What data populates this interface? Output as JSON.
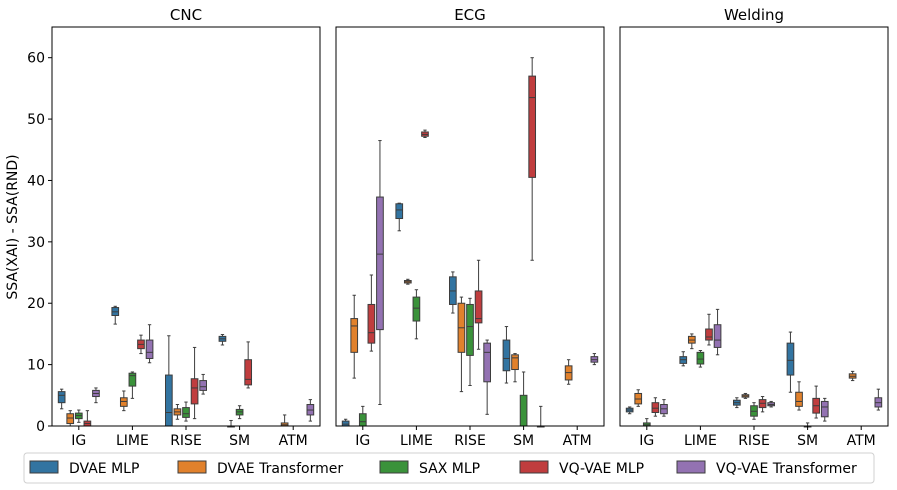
{
  "chart_data": {
    "type": "box",
    "ylabel": "SSA(XAI) - SSA(RND)",
    "ylim": [
      0,
      65
    ],
    "yticks": [
      0,
      10,
      20,
      30,
      40,
      50,
      60
    ],
    "categories": [
      "IG",
      "LIME",
      "RISE",
      "SM",
      "ATM"
    ],
    "series_names": [
      "DVAE MLP",
      "DVAE Transformer",
      "SAX MLP",
      "VQ-VAE MLP",
      "VQ-VAE Transformer"
    ],
    "colors": [
      "#3274a1",
      "#e1812c",
      "#3a923a",
      "#c03d3e",
      "#9372b2"
    ],
    "panels": [
      {
        "title": "CNC",
        "boxes": [
          [
            [
              2.8,
              3.8,
              5.0,
              5.6,
              6.0
            ],
            [
              0.0,
              0.4,
              1.3,
              2.0,
              2.5
            ],
            [
              0.6,
              1.2,
              1.7,
              2.1,
              2.6
            ],
            [
              0.0,
              0.0,
              0.4,
              0.8,
              2.5
            ],
            [
              3.8,
              4.8,
              5.3,
              5.8,
              6.2
            ]
          ],
          [
            [
              16.6,
              18.0,
              18.6,
              19.3,
              19.5
            ],
            [
              2.5,
              3.2,
              4.0,
              4.6,
              5.7
            ],
            [
              4.5,
              6.5,
              8.2,
              8.6,
              8.8
            ],
            [
              11.8,
              12.6,
              13.3,
              14.0,
              14.8
            ],
            [
              10.3,
              11.0,
              12.0,
              14.0,
              16.5
            ]
          ],
          [
            [
              0.0,
              0.0,
              2.2,
              8.3,
              14.7
            ],
            [
              1.1,
              1.8,
              2.3,
              2.8,
              3.5
            ],
            [
              0.8,
              1.4,
              2.0,
              3.0,
              3.9
            ],
            [
              1.2,
              3.6,
              6.2,
              7.7,
              12.8
            ],
            [
              5.2,
              5.8,
              6.4,
              7.4,
              8.4
            ]
          ],
          [
            [
              13.2,
              13.8,
              14.2,
              14.6,
              14.9
            ],
            [
              0.0,
              0.0,
              0.0,
              0.0,
              0.9
            ],
            [
              1.2,
              1.8,
              2.3,
              2.7,
              3.3
            ],
            [
              6.2,
              6.7,
              7.6,
              10.8,
              13.7
            ],
            [
              0.0,
              0.0,
              0.0,
              0.0,
              0.0
            ]
          ],
          [
            [
              0.0,
              0.0,
              0.0,
              0.0,
              0.0
            ],
            [
              0.0,
              0.0,
              0.2,
              0.5,
              1.8
            ],
            [
              0.0,
              0.0,
              0.0,
              0.0,
              0.0
            ],
            [
              0.0,
              0.0,
              0.0,
              0.0,
              0.0
            ],
            [
              0.8,
              1.8,
              2.6,
              3.5,
              4.3
            ]
          ]
        ]
      },
      {
        "title": "ECG",
        "boxes": [
          [
            [
              0.0,
              0.0,
              0.3,
              0.8,
              1.1
            ],
            [
              7.8,
              12.0,
              16.3,
              17.5,
              21.3
            ],
            [
              0.0,
              0.0,
              0.7,
              2.0,
              3.2
            ],
            [
              12.2,
              13.5,
              15.2,
              19.8,
              24.6
            ],
            [
              3.5,
              15.7,
              28.0,
              37.3,
              46.5
            ]
          ],
          [
            [
              31.8,
              33.8,
              35.2,
              36.2,
              36.3
            ],
            [
              23.1,
              23.3,
              23.5,
              23.7,
              23.9
            ],
            [
              14.2,
              17.1,
              19.2,
              21.0,
              22.2
            ],
            [
              47.0,
              47.2,
              47.5,
              47.9,
              48.2
            ],
            [
              0.0,
              0.0,
              0.0,
              0.0,
              0.0
            ]
          ],
          [
            [
              18.4,
              19.8,
              22.0,
              24.3,
              25.1
            ],
            [
              5.6,
              12.0,
              16.0,
              20.0,
              21.0
            ],
            [
              6.6,
              11.5,
              16.2,
              19.8,
              20.8
            ],
            [
              12.5,
              16.8,
              17.5,
              22.0,
              27.0
            ],
            [
              1.9,
              7.2,
              12.0,
              13.5,
              14.0
            ]
          ],
          [
            [
              7.0,
              9.0,
              11.0,
              14.0,
              16.2
            ],
            [
              7.2,
              9.2,
              11.1,
              11.6,
              11.8
            ],
            [
              0.0,
              0.0,
              0.0,
              5.0,
              8.8
            ],
            [
              27.0,
              40.5,
              53.5,
              57.0,
              60.0
            ],
            [
              0.0,
              0.0,
              0.0,
              0.0,
              3.2
            ]
          ],
          [
            [
              0.0,
              0.0,
              0.0,
              0.0,
              0.0
            ],
            [
              6.8,
              7.5,
              8.7,
              9.8,
              10.8
            ],
            [
              0.0,
              0.0,
              0.0,
              0.0,
              0.0
            ],
            [
              0.0,
              0.0,
              0.0,
              0.0,
              0.0
            ],
            [
              10.0,
              10.4,
              10.8,
              11.3,
              11.8
            ]
          ]
        ]
      },
      {
        "title": "Welding",
        "boxes": [
          [
            [
              2.0,
              2.3,
              2.6,
              2.9,
              3.1
            ],
            [
              3.2,
              3.6,
              4.4,
              5.3,
              5.9
            ],
            [
              0.0,
              0.0,
              0.2,
              0.5,
              1.2
            ],
            [
              1.6,
              2.2,
              2.9,
              3.8,
              4.6
            ],
            [
              1.6,
              2.0,
              2.8,
              3.5,
              4.3
            ]
          ],
          [
            [
              9.8,
              10.2,
              10.8,
              11.3,
              12.1
            ],
            [
              12.6,
              13.5,
              14.0,
              14.6,
              15.0
            ],
            [
              9.6,
              10.1,
              10.9,
              12.0,
              12.3
            ],
            [
              13.2,
              14.0,
              14.5,
              15.8,
              18.2
            ],
            [
              11.6,
              12.8,
              14.0,
              16.5,
              19.0
            ]
          ],
          [
            [
              3.0,
              3.4,
              3.8,
              4.2,
              4.6
            ],
            [
              4.5,
              4.7,
              4.9,
              5.1,
              5.3
            ],
            [
              1.1,
              1.6,
              2.4,
              3.3,
              3.8
            ],
            [
              2.3,
              3.0,
              3.7,
              4.3,
              4.8
            ],
            [
              3.1,
              3.3,
              3.5,
              3.8,
              4.0
            ]
          ],
          [
            [
              5.5,
              8.3,
              10.7,
              13.5,
              15.3
            ],
            [
              2.6,
              3.2,
              4.0,
              5.5,
              7.2
            ],
            [
              0.0,
              0.0,
              0.0,
              0.0,
              0.5
            ],
            [
              1.3,
              2.1,
              3.3,
              4.5,
              6.5
            ],
            [
              0.8,
              1.5,
              3.1,
              4.0,
              4.5
            ]
          ],
          [
            [
              0.0,
              0.0,
              0.0,
              0.0,
              0.0
            ],
            [
              7.4,
              7.8,
              8.1,
              8.5,
              8.9
            ],
            [
              0.0,
              0.0,
              0.0,
              0.0,
              0.0
            ],
            [
              0.0,
              0.0,
              0.0,
              0.0,
              0.0
            ],
            [
              2.6,
              3.1,
              3.8,
              4.6,
              6.0
            ]
          ]
        ]
      }
    ],
    "legend_position": "bottom"
  }
}
